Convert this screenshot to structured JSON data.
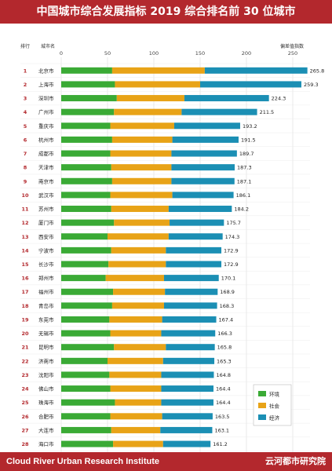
{
  "title": "中国城市综合发展指标 2019 综合排名前 30 位城市",
  "footer": {
    "left": "Cloud River Urban Research Institute",
    "right": "云河都市研究院"
  },
  "colors": {
    "header": "#b3282d",
    "env": "#3aaa35",
    "soc": "#e8a317",
    "eco": "#1b8fb4"
  },
  "chart_data": {
    "type": "bar",
    "orientation": "horizontal",
    "stacked": true,
    "rank_header": "排行",
    "city_header": "城市名",
    "value_header": "偏差值指数",
    "xlim": [
      0,
      250
    ],
    "xticks": [
      0,
      50,
      100,
      150,
      200,
      250
    ],
    "categories": [
      "北京市",
      "上海市",
      "深圳市",
      "广州市",
      "重庆市",
      "杭州市",
      "成都市",
      "天津市",
      "南京市",
      "武汉市",
      "苏州市",
      "厦门市",
      "西安市",
      "宁波市",
      "长沙市",
      "郑州市",
      "福州市",
      "青岛市",
      "东莞市",
      "无锡市",
      "昆明市",
      "济南市",
      "沈阳市",
      "佛山市",
      "珠海市",
      "合肥市",
      "大连市",
      "海口市",
      "贵阳市",
      "南昌市"
    ],
    "ranks": [
      1,
      2,
      3,
      4,
      5,
      6,
      7,
      8,
      9,
      10,
      11,
      12,
      13,
      14,
      15,
      16,
      17,
      18,
      19,
      20,
      21,
      22,
      23,
      24,
      25,
      26,
      27,
      28,
      29,
      30
    ],
    "totals": [
      265.8,
      259.3,
      224.3,
      211.5,
      193.2,
      191.5,
      189.7,
      187.3,
      187.1,
      186.1,
      184.2,
      175.7,
      174.3,
      172.9,
      172.9,
      170.1,
      168.9,
      168.3,
      167.4,
      166.3,
      165.8,
      165.3,
      164.8,
      164.4,
      164.4,
      163.5,
      163.1,
      161.2,
      160.8,
      159.4
    ],
    "series": [
      {
        "name": "环境",
        "values": [
          55,
          58,
          60,
          57,
          53,
          55,
          53,
          54,
          55,
          53,
          54,
          57,
          50,
          54,
          51,
          48,
          56,
          55,
          52,
          53,
          57,
          50,
          52,
          53,
          58,
          53,
          54,
          56,
          54,
          54
        ]
      },
      {
        "name": "社会",
        "values": [
          100,
          92,
          73,
          73,
          69,
          65,
          66,
          65,
          64,
          67,
          62,
          60,
          66,
          59,
          62,
          63,
          56,
          56,
          57,
          55,
          56,
          60,
          56,
          55,
          50,
          56,
          53,
          54,
          53,
          52
        ]
      },
      {
        "name": "经济",
        "values": [
          110.8,
          109.3,
          91.3,
          81.5,
          71.2,
          71.5,
          70.7,
          68.3,
          68.1,
          66.1,
          68.2,
          58.7,
          58.3,
          59.9,
          59.9,
          59.1,
          56.9,
          57.3,
          58.4,
          58.3,
          52.8,
          55.3,
          56.8,
          56.4,
          56.4,
          54.5,
          56.1,
          51.2,
          53.8,
          53.4
        ]
      }
    ],
    "legend": {
      "position": "bottom-right"
    }
  }
}
